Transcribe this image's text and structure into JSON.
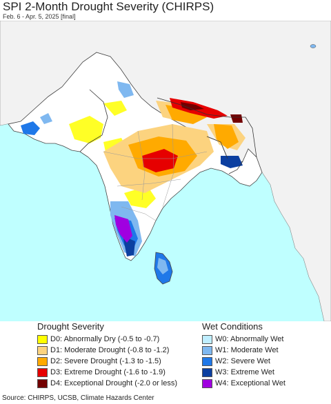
{
  "header": {
    "title": "SPI 2-Month Drought Severity (CHIRPS)",
    "subtitle": "Feb. 6 - Apr. 5, 2025 [final]"
  },
  "map": {
    "colors": {
      "ocean": "#bfffff",
      "land": "#ffffff",
      "outside_land": "#f2f2f2",
      "border": "#555555"
    }
  },
  "legend": {
    "drought": {
      "heading": "Drought Severity",
      "items": [
        {
          "label": "D0: Abnormally Dry (-0.5 to -0.7)",
          "color": "#ffff00"
        },
        {
          "label": "D1: Moderate Drought (-0.8 to -1.2)",
          "color": "#fcd37f"
        },
        {
          "label": "D2: Severe Drought (-1.3 to -1.5)",
          "color": "#ffaa00"
        },
        {
          "label": "D3: Extreme Drought (-1.6 to -1.9)",
          "color": "#e60000"
        },
        {
          "label": "D4: Exceptional Drought (-2.0 or less)",
          "color": "#730000"
        }
      ]
    },
    "wet": {
      "heading": "Wet Conditions",
      "items": [
        {
          "label": "W0: Abnormally Wet",
          "color": "#bfeeff"
        },
        {
          "label": "W1: Moderate Wet",
          "color": "#7fb8f0"
        },
        {
          "label": "W2: Severe Wet",
          "color": "#1f78e8"
        },
        {
          "label": "W3: Extreme Wet",
          "color": "#0c3fa0"
        },
        {
          "label": "W4: Exceptional Wet",
          "color": "#a000e0"
        }
      ]
    }
  },
  "footer": {
    "source": "Source: CHIRPS, UCSB, Climate Hazards Center"
  }
}
